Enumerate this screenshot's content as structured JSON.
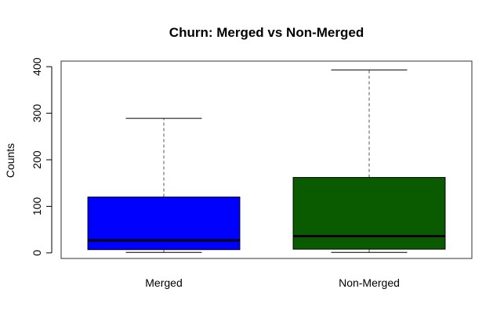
{
  "chart_data": {
    "type": "boxplot",
    "title": "Churn: Merged vs Non-Merged",
    "xlabel": "",
    "ylabel": "Counts",
    "ylim": [
      -12,
      412
    ],
    "yticks": [
      0,
      100,
      200,
      300,
      400
    ],
    "categories": [
      "Merged",
      "Non-Merged"
    ],
    "series": [
      {
        "category": "Merged",
        "min": 1,
        "q1": 7,
        "median": 27,
        "q3": 120,
        "max": 289,
        "color": "#0000FF"
      },
      {
        "category": "Non-Merged",
        "min": 1,
        "q1": 8,
        "median": 36,
        "q3": 162,
        "max": 393,
        "color": "#0A5A00"
      }
    ],
    "grid": false,
    "legend": "none"
  }
}
